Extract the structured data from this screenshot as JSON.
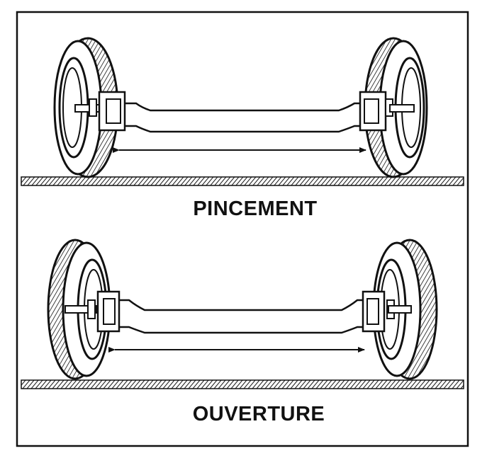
{
  "panels": [
    {
      "caption": "PINCEMENT"
    },
    {
      "caption": "OUVERTURE"
    }
  ],
  "colors": {
    "ink": "#111111",
    "paper": "#ffffff"
  }
}
